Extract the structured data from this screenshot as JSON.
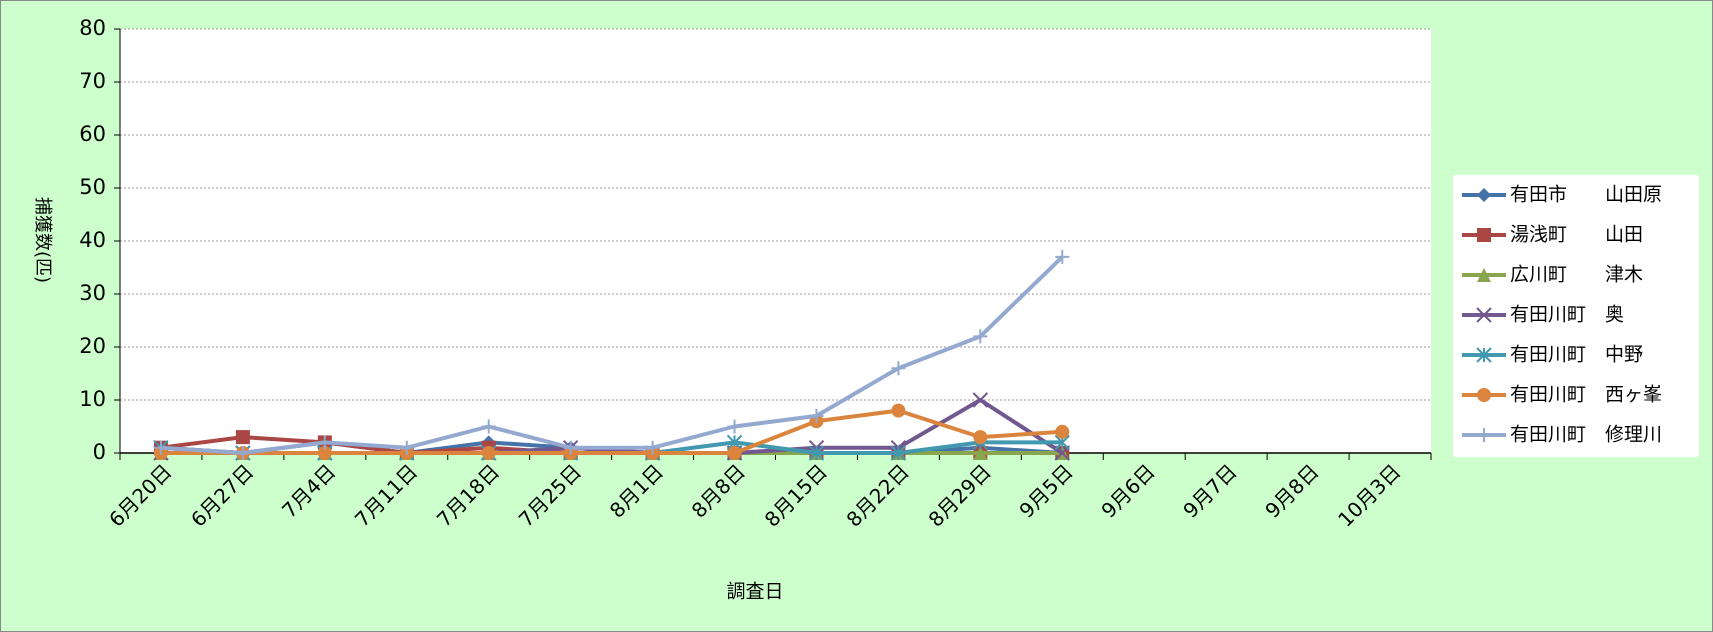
{
  "chart_data": {
    "type": "line",
    "x_label": "調査日",
    "y_label": "捕獲数(匹)",
    "categories": [
      "6月20日",
      "6月27日",
      "7月4日",
      "7月11日",
      "7月18日",
      "7月25日",
      "8月1日",
      "8月8日",
      "8月15日",
      "8月22日",
      "8月29日",
      "9月5日",
      "9月6日",
      "9月7日",
      "9月8日",
      "10月3日"
    ],
    "series": [
      {
        "name": "有田市　　山田原",
        "color": "#4572a7",
        "marker": "diamond",
        "values": [
          1,
          0,
          2,
          0,
          2,
          1,
          0,
          0,
          0,
          0,
          1,
          0,
          null,
          null,
          null,
          null
        ]
      },
      {
        "name": "湯浅町　　山田",
        "color": "#aa4643",
        "marker": "square",
        "values": [
          1,
          3,
          2,
          0,
          1,
          0,
          0,
          0,
          0,
          0,
          0,
          0,
          null,
          null,
          null,
          null
        ]
      },
      {
        "name": "広川町　　津木",
        "color": "#89a54e",
        "marker": "triangle",
        "values": [
          0,
          0,
          0,
          0,
          0,
          0,
          0,
          0,
          0,
          0,
          0,
          0,
          null,
          null,
          null,
          null
        ]
      },
      {
        "name": "有田川町　奥",
        "color": "#71588f",
        "marker": "x",
        "values": [
          0,
          0,
          0,
          0,
          0,
          1,
          0,
          0,
          1,
          1,
          10,
          0,
          null,
          null,
          null,
          null
        ]
      },
      {
        "name": "有田川町　中野",
        "color": "#4198af",
        "marker": "star",
        "values": [
          1,
          0,
          0,
          0,
          0,
          0,
          0,
          2,
          0,
          0,
          2,
          2,
          null,
          null,
          null,
          null
        ]
      },
      {
        "name": "有田川町　西ヶ峯",
        "color": "#db843d",
        "marker": "circle",
        "values": [
          0,
          0,
          0,
          0,
          0,
          0,
          0,
          0,
          6,
          8,
          3,
          4,
          null,
          null,
          null,
          null
        ]
      },
      {
        "name": "有田川町　修理川",
        "color": "#93a9cf",
        "marker": "plus",
        "values": [
          1,
          0,
          2,
          1,
          5,
          1,
          1,
          5,
          7,
          16,
          22,
          37,
          null,
          null,
          null,
          null
        ]
      }
    ],
    "ylim": [
      0,
      80
    ],
    "yticks": [
      0,
      10,
      20,
      30,
      40,
      50,
      60,
      70,
      80
    ],
    "grid": true,
    "legend": "right"
  }
}
